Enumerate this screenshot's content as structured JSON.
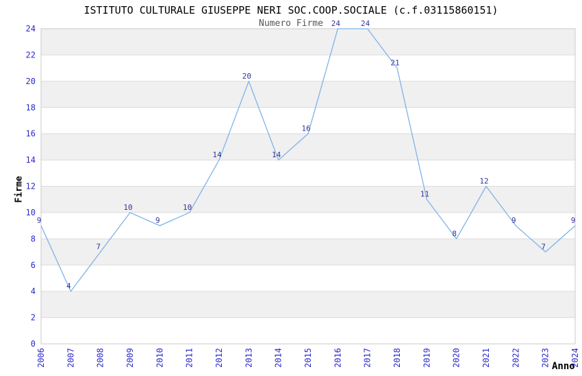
{
  "chart_data": {
    "type": "line",
    "title": "ISTITUTO CULTURALE GIUSEPPE NERI SOC.COOP.SOCIALE (c.f.03115860151)",
    "subtitle": "Numero Firme",
    "xlabel": "Anno",
    "ylabel": "Firme",
    "x": [
      "2006",
      "2007",
      "2008",
      "2009",
      "2010",
      "2011",
      "2012",
      "2013",
      "2014",
      "2015",
      "2016",
      "2017",
      "2018",
      "2019",
      "2020",
      "2021",
      "2022",
      "2023",
      "2024"
    ],
    "values": [
      9,
      4,
      7,
      10,
      9,
      10,
      14,
      20,
      14,
      16,
      24,
      24,
      21,
      11,
      8,
      12,
      9,
      7,
      9
    ],
    "ylim": [
      0,
      24
    ],
    "ytick_step": 2,
    "grid": "alternating-horizontal-bands",
    "legend_position": "none",
    "colors": {
      "line": "#7eb2e8",
      "data_label": "#333399",
      "tick_label": "#2929cc",
      "band_gray": "#f0f0f0",
      "band_white": "#ffffff",
      "gridline": "#dcdcdc",
      "plot_border": "#c8c8c8",
      "title": "#000000",
      "subtitle": "#555555",
      "axis_title": "#000000"
    }
  }
}
